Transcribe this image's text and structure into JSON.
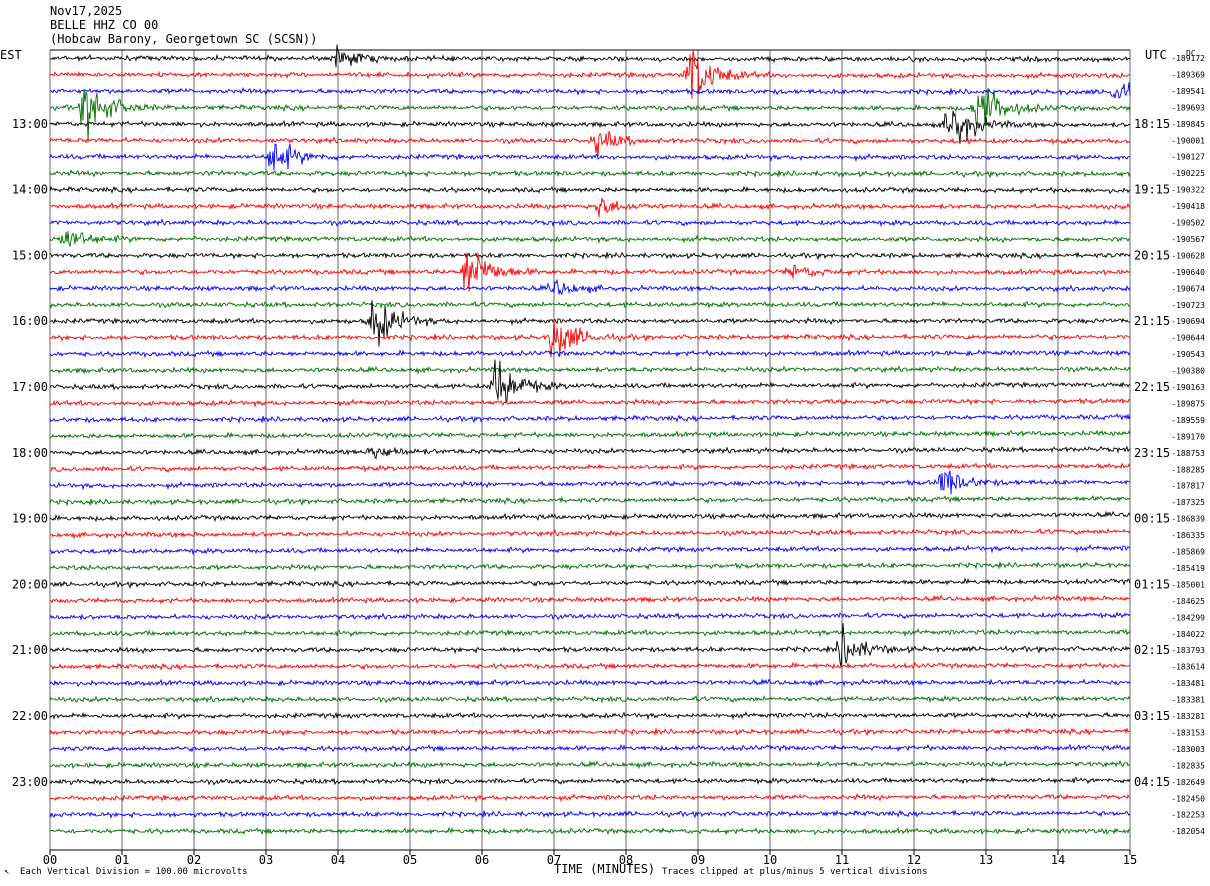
{
  "header": {
    "date": "Nov17,2025",
    "station": "BELLE HHZ CO 00",
    "location": "(Hobcaw Barony, Georgetown SC (SCSN))"
  },
  "left_tz": "EST",
  "right_tz": "UTC",
  "dc_label": "DC",
  "footer": {
    "scale_note": "Each Vertical Division = 100.00 microvolts",
    "clip_note": "Traces clipped at plus/minus 5 vertical divisions",
    "corner_mark": "↖"
  },
  "chart_data": {
    "type": "line",
    "title": "",
    "xlabel": "TIME (MINUTES)",
    "ylabel": "",
    "xlim": [
      0,
      15
    ],
    "x_ticks": [
      "00",
      "01",
      "02",
      "03",
      "04",
      "05",
      "06",
      "07",
      "08",
      "09",
      "10",
      "11",
      "12",
      "13",
      "14",
      "15"
    ],
    "left_hour_labels": [
      "13:00",
      "14:00",
      "15:00",
      "16:00",
      "17:00",
      "18:00",
      "19:00",
      "20:00",
      "21:00",
      "22:00",
      "23:00"
    ],
    "right_hour_labels": [
      "18:15",
      "19:15",
      "20:15",
      "21:15",
      "22:15",
      "23:15",
      "00:15",
      "01:15",
      "02:15",
      "03:15",
      "04:15"
    ],
    "trace_colors": [
      "#000000",
      "#ff0000",
      "#0000ff",
      "#007000"
    ],
    "trace_counts": [
      -189172,
      -189369,
      -189541,
      -189693,
      -189845,
      -190001,
      -190127,
      -190225,
      -190322,
      -190418,
      -190502,
      -190567,
      -190628,
      -190640,
      -190674,
      -190723,
      -190694,
      -190644,
      -190543,
      -190380,
      -190163,
      -189875,
      -189559,
      -189170,
      -188753,
      -188285,
      -187817,
      -187325,
      -186839,
      -186335,
      -185869,
      -185419,
      -185001,
      -184625,
      -184299,
      -184022,
      -183793,
      -183614,
      -183481,
      -183381,
      -183281,
      -183153,
      -183003,
      -182835,
      -182649,
      -182450,
      -182253,
      -182054
    ],
    "events": [
      {
        "trace": 0,
        "minute": 4.0,
        "amp": 1.0
      },
      {
        "trace": 1,
        "minute": 8.9,
        "amp": 3.0
      },
      {
        "trace": 2,
        "minute": 14.8,
        "amp": 1.2
      },
      {
        "trace": 3,
        "minute": 12.9,
        "amp": 3.0
      },
      {
        "trace": 3,
        "minute": 0.5,
        "amp": 3.0
      },
      {
        "trace": 4,
        "minute": 12.5,
        "amp": 2.6
      },
      {
        "trace": 5,
        "minute": 7.6,
        "amp": 1.1
      },
      {
        "trace": 6,
        "minute": 3.1,
        "amp": 1.8
      },
      {
        "trace": 9,
        "minute": 7.6,
        "amp": 1.0
      },
      {
        "trace": 11,
        "minute": 0.2,
        "amp": 1.2
      },
      {
        "trace": 13,
        "minute": 5.8,
        "amp": 3.0
      },
      {
        "trace": 13,
        "minute": 10.3,
        "amp": 0.7
      },
      {
        "trace": 14,
        "minute": 7.0,
        "amp": 0.8
      },
      {
        "trace": 16,
        "minute": 4.5,
        "amp": 2.5
      },
      {
        "trace": 17,
        "minute": 7.0,
        "amp": 2.4
      },
      {
        "trace": 20,
        "minute": 6.2,
        "amp": 2.8
      },
      {
        "trace": 24,
        "minute": 4.5,
        "amp": 0.7
      },
      {
        "trace": 26,
        "minute": 12.4,
        "amp": 1.5
      },
      {
        "trace": 36,
        "minute": 11.0,
        "amp": 1.9
      }
    ]
  }
}
